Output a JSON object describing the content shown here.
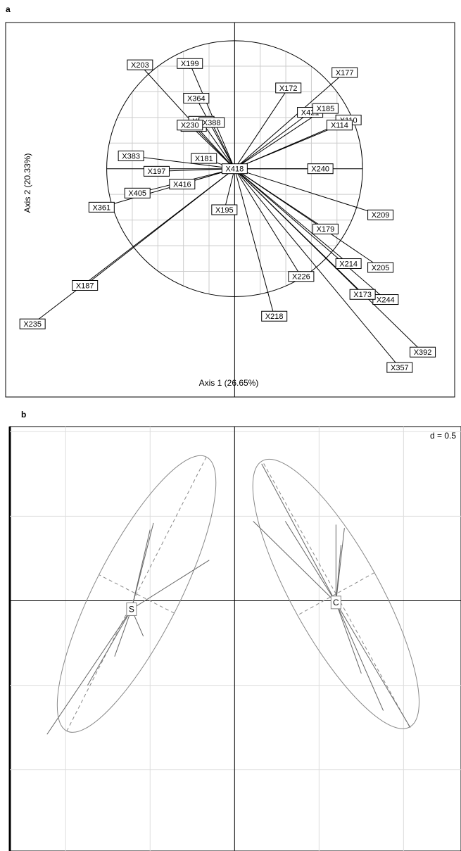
{
  "chart_data": [
    {
      "type": "arrows",
      "panel_label": "a",
      "xlabel": "Axis 1 (26.65%)",
      "ylabel": "Axis 2 (20.33%)",
      "labels": [
        "X203",
        "X199",
        "X364",
        "X190",
        "X166",
        "X388",
        "X230",
        "X172",
        "X177",
        "X421",
        "X185",
        "X110",
        "X114",
        "X240",
        "X209",
        "X179",
        "X214",
        "X205",
        "X244",
        "X173",
        "X392",
        "X357",
        "X226",
        "X218",
        "X195",
        "X181",
        "X383",
        "X197",
        "X416",
        "X361",
        "X405",
        "X187",
        "X235",
        "X418"
      ],
      "x": [
        -0.74,
        -0.35,
        -0.3,
        -0.26,
        -0.32,
        -0.18,
        -0.35,
        0.42,
        0.86,
        0.59,
        0.71,
        0.89,
        0.82,
        0.67,
        1.14,
        0.71,
        0.89,
        1.14,
        1.18,
        1.0,
        1.47,
        1.29,
        0.52,
        0.31,
        -0.08,
        -0.24,
        -0.81,
        -0.61,
        -0.41,
        -1.04,
        -0.76,
        -1.17,
        -1.58,
        0
      ],
      "y": [
        0.81,
        0.82,
        0.55,
        0.37,
        0.33,
        0.36,
        0.34,
        0.63,
        0.75,
        0.44,
        0.47,
        0.38,
        0.34,
        0,
        -0.36,
        -0.47,
        -0.74,
        -0.77,
        -1.02,
        -0.98,
        -1.43,
        -1.55,
        -0.84,
        -1.15,
        -0.32,
        0.08,
        0.1,
        -0.02,
        -0.12,
        -0.3,
        -0.19,
        -0.91,
        -1.21,
        0
      ],
      "xlim": [
        -1.79,
        1.72
      ],
      "ylim": [
        -1.78,
        1.14
      ],
      "xticks": [
        -1,
        -0.8,
        -0.6,
        -0.4,
        -0.2,
        0,
        0.2,
        0.4,
        0.6,
        0.8,
        1
      ],
      "yticks": [
        -1,
        -0.8,
        -0.6,
        -0.4,
        -0.2,
        0,
        0.2,
        0.4,
        0.6,
        0.8,
        1
      ],
      "grid": true,
      "circle": true,
      "color": "#000000"
    },
    {
      "type": "class",
      "panel_label": "b",
      "annotation": "d = 0.5",
      "xlim": [
        -1.33,
        1.34
      ],
      "ylim": [
        -1.48,
        1.03
      ],
      "xticks": [
        -1,
        -0.5,
        0,
        0.5,
        1
      ],
      "yticks": [
        -1,
        -0.5,
        0,
        0.5,
        1
      ],
      "grid": true,
      "color": "#888888",
      "groups": [
        {
          "name": "S",
          "x": -0.61,
          "y": -0.05,
          "points_x": [
            -0.48,
            -0.5,
            -0.15,
            -0.54,
            -0.87,
            -1.11,
            -0.71
          ],
          "points_y": [
            0.46,
            0.42,
            0.24,
            -0.21,
            -0.5,
            -0.79,
            -0.33
          ],
          "ellipse": {
            "x": -0.58,
            "y": 0.04,
            "major": 0.91,
            "minor": 0.25,
            "angle": 63
          }
        },
        {
          "name": "C",
          "x": 0.6,
          "y": -0.01,
          "points_x": [
            0.16,
            0.11,
            0.3,
            0.63,
            0.65,
            0.6,
            0.88,
            1.04,
            0.75
          ],
          "points_y": [
            0.81,
            0.47,
            0.47,
            0.33,
            0.43,
            0.45,
            -0.65,
            -0.75,
            -0.43
          ],
          "ellipse": {
            "x": 0.6,
            "y": 0.04,
            "major": 0.9,
            "minor": 0.26,
            "angle": 119
          }
        }
      ]
    }
  ]
}
